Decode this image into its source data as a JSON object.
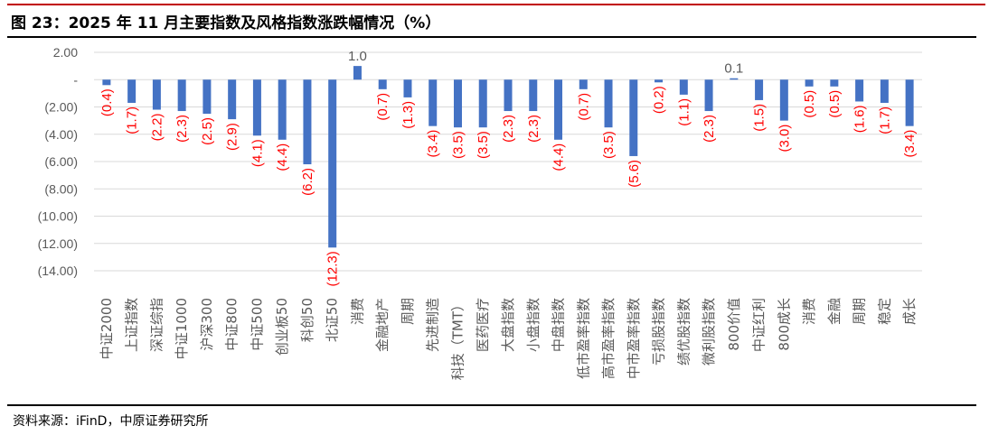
{
  "title": "图 23：2025 年 11 月主要指数及风格指数涨跌幅情况（%）",
  "source": "资料来源：iFinD，中原证券研究所",
  "colors": {
    "bar": "#4472c4",
    "negative_label": "#ff0000",
    "positive_label": "#595959",
    "title_rule": "#c00000"
  },
  "chart_data": {
    "type": "bar",
    "title": "",
    "xlabel": "",
    "ylabel": "",
    "ylim": [
      -14,
      2
    ],
    "yticks": [
      2,
      0,
      -2,
      -4,
      -6,
      -8,
      -10,
      -12,
      -14
    ],
    "ytick_labels": [
      "2.00",
      "-",
      "(2.00)",
      "(4.00)",
      "(6.00)",
      "(8.00)",
      "(10.00)",
      "(12.00)",
      "(14.00)"
    ],
    "grid": true,
    "categories": [
      "中证2000",
      "上证指数",
      "深证综指",
      "中证1000",
      "沪深300",
      "中证800",
      "中证500",
      "创业板50",
      "科创50",
      "北证50",
      "消费",
      "金融地产",
      "周期",
      "先进制造",
      "科技（TMT）",
      "医药医疗",
      "大盘指数",
      "小盘指数",
      "中盘指数",
      "低市盈率指数",
      "高市盈率指数",
      "中市盈率指数",
      "亏损股指数",
      "绩优股指数",
      "微利股指数",
      "800价值",
      "中证红利",
      "800成长",
      "消费",
      "金融",
      "周期",
      "稳定",
      "成长"
    ],
    "values": [
      -0.4,
      -1.7,
      -2.2,
      -2.3,
      -2.5,
      -2.9,
      -4.1,
      -4.4,
      -6.2,
      -12.3,
      1.0,
      -0.7,
      -1.3,
      -3.4,
      -3.5,
      -3.5,
      -2.3,
      -2.3,
      -4.4,
      -0.7,
      -3.5,
      -5.6,
      -0.2,
      -1.1,
      -2.3,
      0.1,
      -1.5,
      -3.0,
      -0.5,
      -0.5,
      -1.6,
      -1.7,
      -3.4
    ],
    "data_labels": [
      "(0.4)",
      "(1.7)",
      "(2.2)",
      "(2.3)",
      "(2.5)",
      "(2.9)",
      "(4.1)",
      "(4.4)",
      "(6.2)",
      "(12.3)",
      "1.0",
      "(0.7)",
      "(1.3)",
      "(3.4)",
      "(3.5)",
      "(3.5)",
      "(2.3)",
      "(2.3)",
      "(4.4)",
      "(0.7)",
      "(3.5)",
      "(5.6)",
      "(0.2)",
      "(1.1)",
      "(2.3)",
      "0.1",
      "(1.5)",
      "(3.0)",
      "(0.5)",
      "(0.5)",
      "(1.6)",
      "(1.7)",
      "(3.4)"
    ]
  }
}
